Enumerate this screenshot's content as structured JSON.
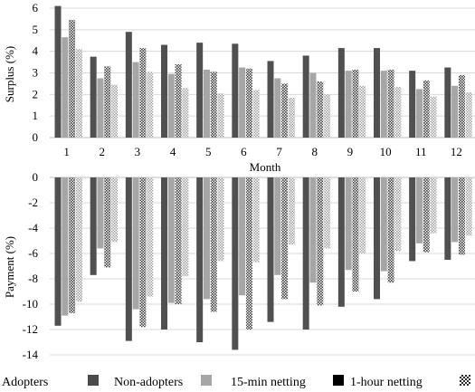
{
  "chart_data": [
    {
      "type": "bar",
      "categories": [
        "1",
        "2",
        "3",
        "4",
        "5",
        "6",
        "7",
        "8",
        "9",
        "10",
        "11",
        "12"
      ],
      "ylabel": "Surplus (%)",
      "xlabel": "Month",
      "ylim": [
        0,
        6
      ],
      "yticks": [
        0,
        1,
        2,
        3,
        4,
        5,
        6
      ],
      "series": [
        {
          "name": "Non-adopters",
          "values": [
            6.1,
            3.75,
            4.9,
            4.3,
            4.4,
            4.35,
            3.55,
            3.8,
            4.15,
            4.15,
            3.1,
            3.25
          ]
        },
        {
          "name": "15-min netting",
          "values": [
            4.65,
            2.75,
            3.5,
            2.95,
            3.15,
            3.25,
            2.75,
            3.0,
            3.1,
            3.1,
            2.25,
            2.4
          ]
        },
        {
          "name": "1-hour netting",
          "values": [
            5.45,
            3.3,
            4.15,
            3.4,
            3.05,
            3.2,
            2.5,
            2.6,
            3.15,
            3.15,
            2.65,
            2.9
          ]
        },
        {
          "name": "",
          "values": [
            4.1,
            2.45,
            3.05,
            2.3,
            2.05,
            2.2,
            1.85,
            2.0,
            2.4,
            2.35,
            1.9,
            2.1
          ]
        }
      ]
    },
    {
      "type": "bar",
      "categories": [
        "1",
        "2",
        "3",
        "4",
        "5",
        "6",
        "7",
        "8",
        "9",
        "10",
        "11",
        "12"
      ],
      "ylabel": "Payment (%)",
      "ylim": [
        -14,
        0
      ],
      "yticks": [
        0,
        -2,
        -4,
        -6,
        -8,
        -10,
        -12,
        -14
      ],
      "series": [
        {
          "name": "Non-adopters",
          "values": [
            -11.7,
            -7.7,
            -12.9,
            -12.0,
            -13.0,
            -13.6,
            -11.4,
            -12.0,
            -10.2,
            -9.6,
            -6.6,
            -6.5
          ]
        },
        {
          "name": "15-min netting",
          "values": [
            -10.9,
            -5.6,
            -10.4,
            -9.9,
            -9.6,
            -9.3,
            -7.7,
            -8.3,
            -7.3,
            -7.4,
            -5.2,
            -5.1
          ]
        },
        {
          "name": "1-hour netting",
          "values": [
            -10.7,
            -7.1,
            -11.8,
            -10.0,
            -10.6,
            -12.0,
            -9.6,
            -10.1,
            -9.0,
            -8.3,
            -5.9,
            -6.1
          ]
        },
        {
          "name": "",
          "values": [
            -9.8,
            -5.1,
            -9.4,
            -7.8,
            -6.6,
            -6.7,
            -5.3,
            -5.6,
            -6.0,
            -5.8,
            -4.4,
            -4.6
          ]
        }
      ]
    }
  ],
  "legend": {
    "title": "Adopters",
    "entries": [
      "Non-adopters",
      "15-min netting",
      "1-hour netting"
    ]
  },
  "colors": {
    "non_adopters": "#505050",
    "min15": "#a6a6a6",
    "hour1_fg": "#404040",
    "hour1_bg": "#ffffff",
    "last_fg": "#9e9e9e",
    "last_bg": "#ffffff"
  }
}
